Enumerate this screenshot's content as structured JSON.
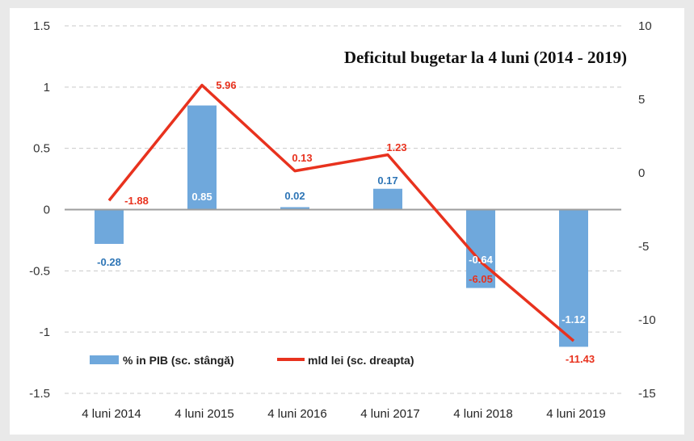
{
  "chart_data": {
    "type": "bar",
    "title": "Deficitul bugetar la 4 luni (2014 - 2019)",
    "categories": [
      "4 luni 2014",
      "4 luni 2015",
      "4 luni 2016",
      "4 luni 2017",
      "4 luni 2018",
      "4 luni 2019"
    ],
    "series": [
      {
        "name": "% in PIB (sc. stângă)",
        "type": "bar",
        "axis": "left",
        "values": [
          -0.28,
          0.85,
          0.02,
          0.17,
          -0.64,
          -1.12
        ],
        "labels": [
          "-0.28",
          "0.85",
          "0.02",
          "0.17",
          "-0.64",
          "-1.12"
        ],
        "color": "#6fa8dc"
      },
      {
        "name": "mld lei (sc. dreapta)",
        "type": "line",
        "axis": "right",
        "values": [
          -1.88,
          5.96,
          0.13,
          1.23,
          -6.05,
          -11.43
        ],
        "labels": [
          "-1.88",
          "5.96",
          "0.13",
          "1.23",
          "-6.05",
          "-11.43"
        ],
        "color": "#e8321e"
      }
    ],
    "y_left": {
      "min": -1.5,
      "max": 1.5,
      "ticks": [
        "1.5",
        "1",
        "0.5",
        "0",
        "-0.5",
        "-1",
        "-1.5"
      ]
    },
    "y_right": {
      "min": -15,
      "max": 10,
      "ticks": [
        "10",
        "5",
        "0",
        "-5",
        "-10",
        "-15"
      ]
    },
    "grid": true,
    "legend": "bottom-left"
  }
}
